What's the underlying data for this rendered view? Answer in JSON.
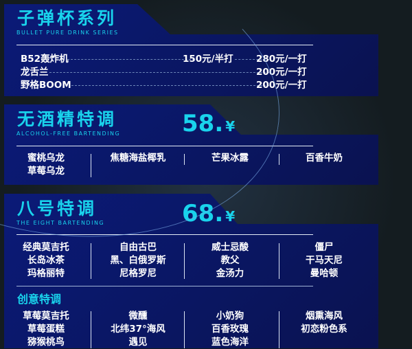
{
  "bullet": {
    "title": "子弹杯系列",
    "subtitle": "BULLET PURE DRINK SERIES",
    "items": [
      {
        "name": "B52轰炸机",
        "price_half": "150元/半打",
        "price_dozen": "280元/一打"
      },
      {
        "name": "龙舌兰",
        "price_dozen": "200元/一打"
      },
      {
        "name": "野格BOOM",
        "price_dozen": "200元/一打"
      }
    ]
  },
  "alcohol_free": {
    "title": "无酒精特调",
    "subtitle": "ALCOHOL-FREE BARTENDING",
    "price": "58.",
    "currency": "¥",
    "columns": [
      [
        "蜜桃乌龙",
        "草莓乌龙"
      ],
      [
        "焦糖海盐椰乳"
      ],
      [
        "芒果冰露"
      ],
      [
        "百香牛奶"
      ]
    ]
  },
  "eight": {
    "title": "八号特调",
    "subtitle": "THE EIGHT BARTENDING",
    "price": "68.",
    "currency": "¥",
    "columns": [
      [
        "经典莫吉托",
        "长岛冰茶",
        "玛格丽特"
      ],
      [
        "自由古巴",
        "黑、白俄罗斯",
        "尼格罗尼"
      ],
      [
        "威士忌酸",
        "教父",
        "金汤力"
      ],
      [
        "僵尸",
        "干马天尼",
        "曼哈顿"
      ]
    ],
    "creative_title": "创意特调",
    "creative_columns": [
      [
        "草莓莫吉托",
        "草莓蛋糕",
        "猕猴桃鸟"
      ],
      [
        "微醺",
        "北纬37°海风",
        "遇见"
      ],
      [
        "小奶狗",
        "百香玫瑰",
        "蓝色海洋"
      ],
      [
        "烟熏海风",
        "初恋粉色系"
      ]
    ]
  }
}
